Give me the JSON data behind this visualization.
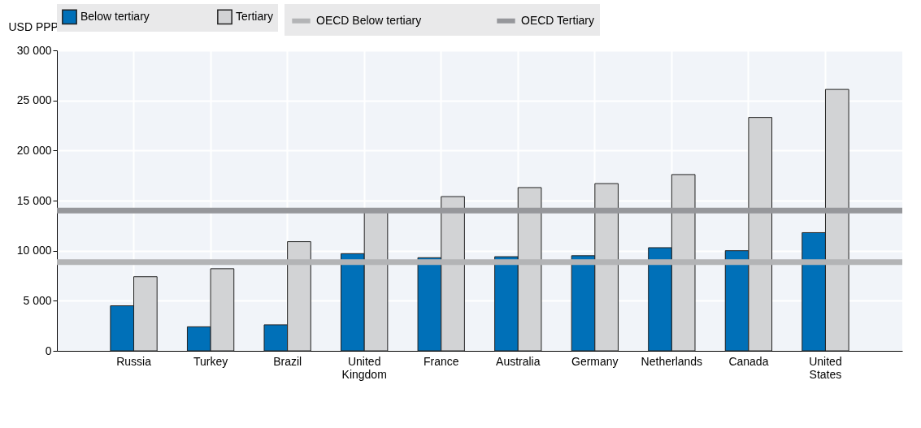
{
  "chart_data": {
    "type": "bar",
    "ylabel": "USD PPP",
    "categories": [
      "Russia",
      "Turkey",
      "Brazil",
      "United Kingdom",
      "France",
      "Australia",
      "Germany",
      "Netherlands",
      "Canada",
      "United States"
    ],
    "series": [
      {
        "name": "Below tertiary",
        "color": "#0070b8",
        "values": [
          4500,
          2400,
          2600,
          9700,
          9300,
          9400,
          9500,
          10300,
          10000,
          11800
        ]
      },
      {
        "name": "Tertiary",
        "color": "#d2d3d5",
        "values": [
          7400,
          8200,
          10900,
          13900,
          15400,
          16300,
          16700,
          17600,
          23300,
          26100
        ]
      }
    ],
    "ref_lines": [
      {
        "axis": "y",
        "value": 8850,
        "label": "OECD Below tertiary",
        "color": "#b3b4b6"
      },
      {
        "axis": "y",
        "value": 14000,
        "label": "OECD Tertiary",
        "color": "#96979b"
      }
    ],
    "ylim": [
      0,
      30000
    ],
    "yticks": [
      {
        "value": 0,
        "label": "0"
      },
      {
        "value": 5000,
        "label": "5 000"
      },
      {
        "value": 10000,
        "label": "10 000"
      },
      {
        "value": 15000,
        "label": "15 000"
      },
      {
        "value": 20000,
        "label": "20 000"
      },
      {
        "value": 25000,
        "label": "25 000"
      },
      {
        "value": 30000,
        "label": "30 000"
      }
    ],
    "grid": true,
    "legend": "top"
  }
}
